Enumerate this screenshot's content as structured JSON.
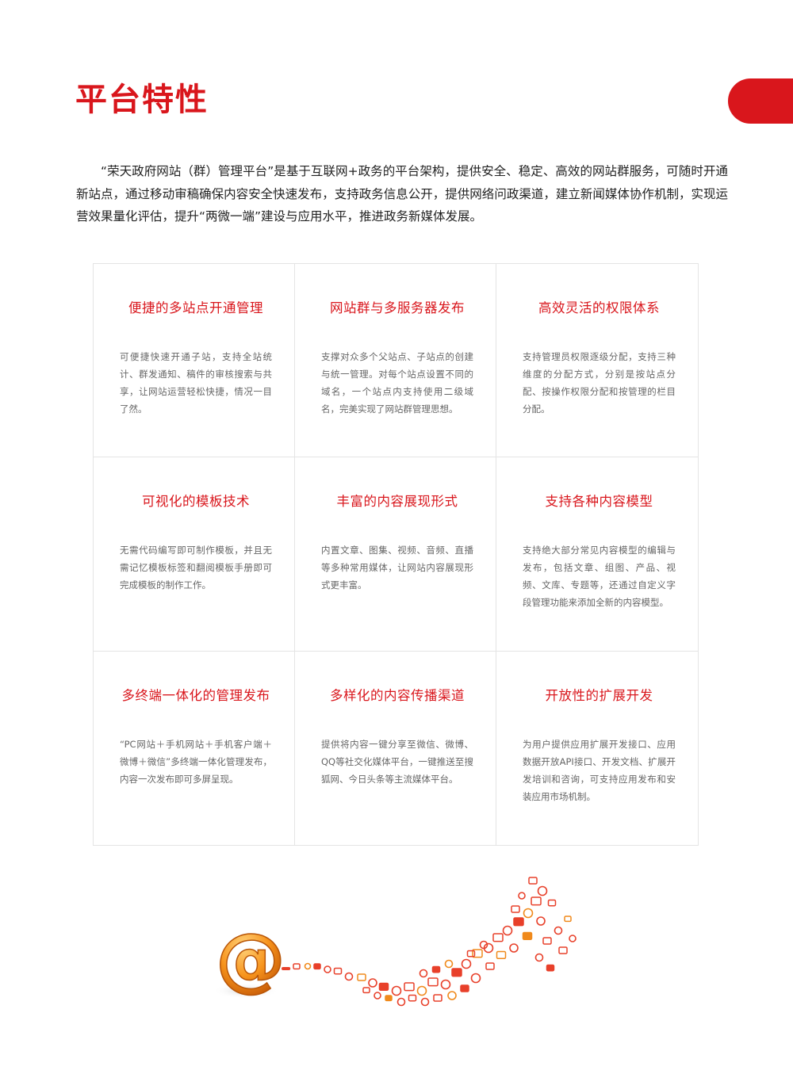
{
  "page": {
    "title": "平台特性",
    "intro": "“荣天政府网站（群）管理平台”是基于互联网+政务的平台架构，提供安全、稳定、高效的网站群服务，可随时开通新站点，通过移动审稿确保内容安全快速发布，支持政务信息公开，提供网络问政渠道，建立新闻媒体协作机制，实现运营效果量化评估，提升“两微一端”建设与应用水平，推进政务新媒体发展。"
  },
  "features": [
    {
      "title": "便捷的多站点开通管理",
      "desc": "可便捷快速开通子站，支持全站统计、群发通知、稿件的审核搜索与共享，让网站运营轻松快捷，情况一目了然。"
    },
    {
      "title": "网站群与多服务器发布",
      "desc": "支撑对众多个父站点、子站点的创建与统一管理。对每个站点设置不同的域名，一个站点内支持使用二级域名，完美实现了网站群管理思想。"
    },
    {
      "title": "高效灵活的权限体系",
      "desc": "支持管理员权限逐级分配，支持三种维度的分配方式，分别是按站点分配、按操作权限分配和按管理的栏目分配。"
    },
    {
      "title": "可视化的模板技术",
      "desc": "无需代码编写即可制作模板，并且无需记忆模板标签和翻阅模板手册即可完成模板的制作工作。"
    },
    {
      "title": "丰富的内容展现形式",
      "desc": "内置文章、图集、视频、音频、直播等多种常用媒体，让网站内容展现形式更丰富。"
    },
    {
      "title": "支持各种内容模型",
      "desc": "支持绝大部分常见内容模型的编辑与发布，包括文章、组图、产品、视频、文库、专题等，还通过自定义字段管理功能来添加全新的内容模型。"
    },
    {
      "title": "多终端一体化的管理发布",
      "desc": "“PC网站＋手机网站＋手机客户端＋微博＋微信”多终端一体化管理发布，内容一次发布即可多屏呈现。"
    },
    {
      "title": "多样化的内容传播渠道",
      "desc": "提供将内容一键分享至微信、微博、QQ等社交化媒体平台，一键推送至搜狐网、今日头条等主流媒体平台。"
    },
    {
      "title": "开放性的扩展开发",
      "desc": "为用户提供应用扩展开发接口、应用数据开放API接口、开发文档、扩展开发培训和咨询，可支持应用发布和安装应用市场机制。"
    }
  ],
  "colors": {
    "accent": "#d9161c",
    "orange": "#f08a1c",
    "icon_red": "#e8402a"
  },
  "illustration": {
    "icon": "at-sign-icon",
    "glyph": "@"
  }
}
